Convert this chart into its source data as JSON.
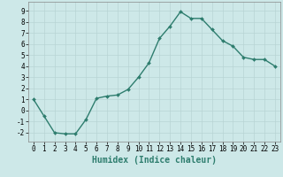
{
  "xlabel": "Humidex (Indice chaleur)",
  "ylabel": "",
  "x": [
    0,
    1,
    2,
    3,
    4,
    5,
    6,
    7,
    8,
    9,
    10,
    11,
    12,
    13,
    14,
    15,
    16,
    17,
    18,
    19,
    20,
    21,
    22,
    23
  ],
  "y": [
    1,
    -0.5,
    -2,
    -2.1,
    -2.1,
    -0.8,
    1.1,
    1.3,
    1.4,
    1.9,
    3.0,
    4.3,
    6.5,
    7.6,
    8.9,
    8.3,
    8.3,
    7.3,
    6.3,
    5.8,
    4.8,
    4.6,
    4.6,
    4.0
  ],
  "line_color": "#2e7d6e",
  "marker": "D",
  "marker_size": 2.0,
  "bg_color": "#cde8e8",
  "grid_color": "#b8d4d4",
  "xlim": [
    -0.5,
    23.5
  ],
  "ylim": [
    -2.8,
    9.8
  ],
  "yticks": [
    -2,
    -1,
    0,
    1,
    2,
    3,
    4,
    5,
    6,
    7,
    8,
    9
  ],
  "xticks": [
    0,
    1,
    2,
    3,
    4,
    5,
    6,
    7,
    8,
    9,
    10,
    11,
    12,
    13,
    14,
    15,
    16,
    17,
    18,
    19,
    20,
    21,
    22,
    23
  ],
  "tick_fontsize": 5.5,
  "label_fontsize": 7.0,
  "line_width": 1.0
}
